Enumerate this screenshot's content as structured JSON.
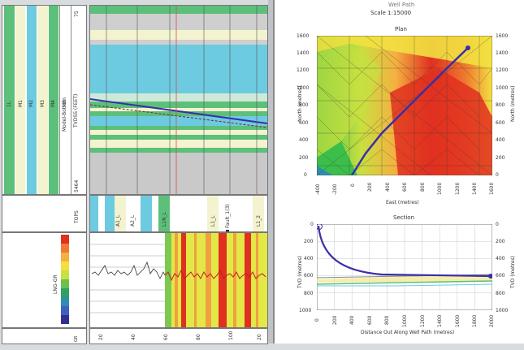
{
  "track_header": {
    "curve_names": [
      "1L",
      "M1",
      "M2",
      "M3",
      "M4",
      "M5"
    ],
    "index_label": "Model-Bottom",
    "depth_label": "TVDSS (FEET)",
    "top_value": "75",
    "bottom_value": "5464"
  },
  "tops": {
    "header": "TOPS",
    "markers": [
      "A1_L",
      "A2_L",
      "L1N_L",
      "L1_L",
      "Fault_1(3)",
      "L1_2"
    ]
  },
  "log_track": {
    "header": "LNG-GR",
    "scale_header": "GR\nAPI",
    "color_scale": [
      "#e03020",
      "#f07a30",
      "#f5b040",
      "#f2e040",
      "#c8e040",
      "#6cc050",
      "#30a060",
      "#2c8fb0",
      "#4060c0",
      "#303090"
    ],
    "x_ticks": [
      "0",
      "20",
      "40",
      "60",
      "80",
      "100"
    ]
  },
  "well_path": {
    "title": "Well Path",
    "scale": "Scale 1:15000"
  },
  "plan": {
    "title": "Plan",
    "xlabel": "East (metres)",
    "ylabel_left": "North (metres)",
    "ylabel_right": "North (metres)",
    "x_ticks": [
      "-400",
      "-200",
      "0",
      "200",
      "400",
      "600",
      "800",
      "1000",
      "1200",
      "1400",
      "1600"
    ],
    "y_ticks": [
      "0",
      "200",
      "400",
      "600",
      "800",
      "1000",
      "1200",
      "1400",
      "1600"
    ]
  },
  "section": {
    "title": "Section",
    "xlabel": "Distance Out Along Well Path (metres)",
    "ylabel_left": "TVD (metres)",
    "ylabel_right": "TVD (metres)",
    "x_ticks": [
      "0",
      "200",
      "400",
      "600",
      "800",
      "1000",
      "1200",
      "1400",
      "1600",
      "1800",
      "2000"
    ],
    "y_ticks": [
      "0",
      "200",
      "400",
      "600",
      "800",
      "1000"
    ]
  },
  "colors": {
    "accent_path": "#3a2fa8",
    "band_green": "#5cc07a",
    "band_cyan": "#6ccbe0",
    "band_cream": "#f3f3cf"
  }
}
